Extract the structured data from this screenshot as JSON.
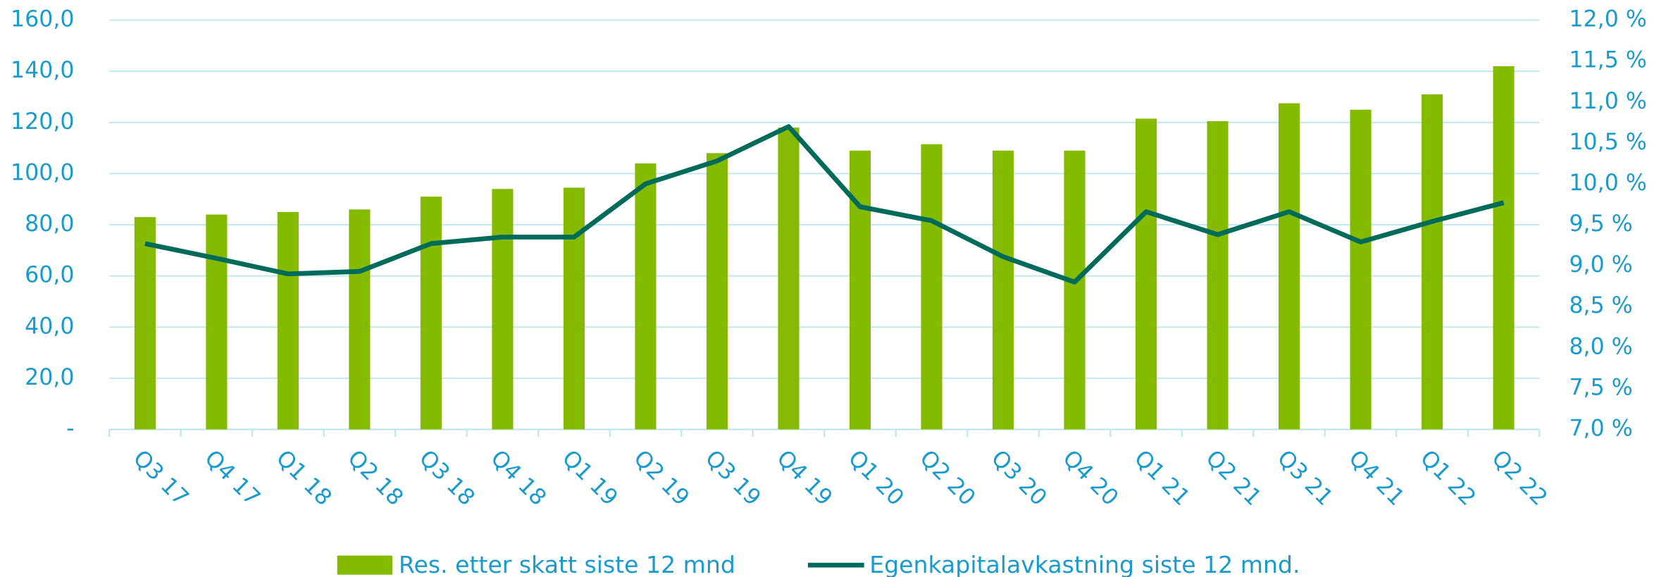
{
  "chart_data": {
    "type": "bar",
    "categories": [
      "Q3 17",
      "Q4 17",
      "Q1 18",
      "Q2 18",
      "Q3 18",
      "Q4 18",
      "Q1 19",
      "Q2 19",
      "Q3 19",
      "Q4 19",
      "Q1 20",
      "Q2 20",
      "Q3 20",
      "Q4 20",
      "Q1 21",
      "Q2 21",
      "Q3 21",
      "Q4 21",
      "Q1 22",
      "Q2 22"
    ],
    "series": [
      {
        "name": "Res. etter skatt siste 12 mnd",
        "type": "bar",
        "color": "#84bb00",
        "values": [
          83,
          84,
          85,
          86,
          91,
          94,
          94.5,
          104,
          108,
          118,
          109,
          111.5,
          109,
          109,
          121.5,
          120.5,
          127.5,
          125,
          131,
          142
        ]
      },
      {
        "name": "Egenkapitalavkastning siste 12 mnd.",
        "type": "line",
        "axis": "y2",
        "color": "#006a5b",
        "values": [
          9.27,
          9.09,
          8.9,
          8.93,
          9.27,
          9.35,
          9.35,
          10.0,
          10.28,
          10.7,
          9.72,
          9.55,
          9.11,
          8.8,
          9.66,
          9.38,
          9.66,
          9.29,
          9.54,
          9.77
        ]
      }
    ],
    "ylim": [
      0,
      160
    ],
    "yticks": [
      {
        "value": 0,
        "label": "-"
      },
      {
        "value": 20,
        "label": "20,0"
      },
      {
        "value": 40,
        "label": "40,0"
      },
      {
        "value": 60,
        "label": "60,0"
      },
      {
        "value": 80,
        "label": "80,0"
      },
      {
        "value": 100,
        "label": "100,0"
      },
      {
        "value": 120,
        "label": "120,0"
      },
      {
        "value": 140,
        "label": "140,0"
      },
      {
        "value": 160,
        "label": "160,0"
      }
    ],
    "y2lim": [
      7,
      12
    ],
    "y2ticks": [
      {
        "value": 7,
        "label": "7,0 %"
      },
      {
        "value": 7.5,
        "label": "7,5 %"
      },
      {
        "value": 8,
        "label": "8,0 %"
      },
      {
        "value": 8.5,
        "label": "8,5 %"
      },
      {
        "value": 9,
        "label": "9,0 %"
      },
      {
        "value": 9.5,
        "label": "9,5 %"
      },
      {
        "value": 10,
        "label": "10,0 %"
      },
      {
        "value": 10.5,
        "label": "10,5 %"
      },
      {
        "value": 11,
        "label": "11,0 %"
      },
      {
        "value": 11.5,
        "label": "11,5 %"
      },
      {
        "value": 12,
        "label": "12,0 %"
      }
    ],
    "grid": true,
    "legend": "bottom"
  }
}
